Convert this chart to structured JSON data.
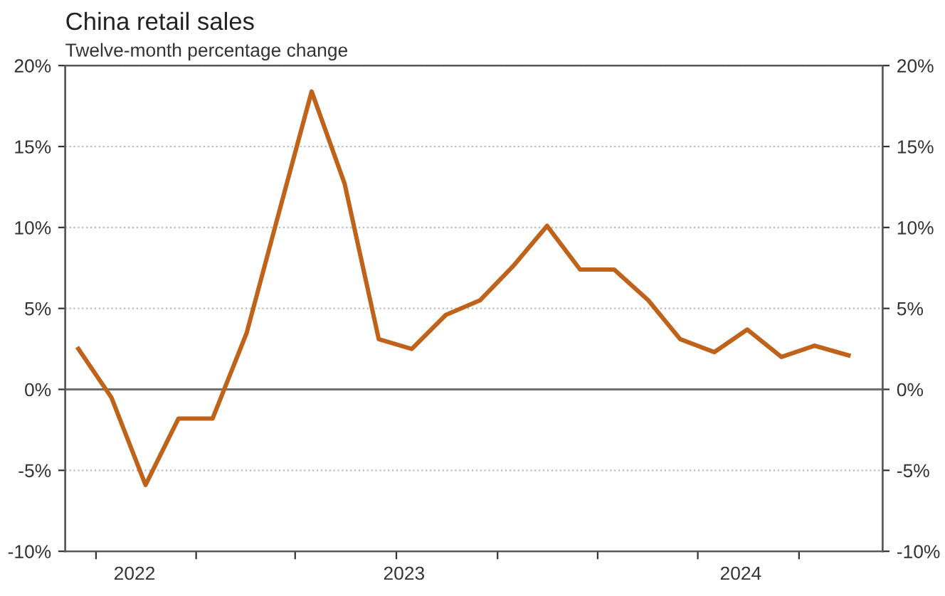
{
  "chart_data": {
    "type": "line",
    "title": "China retail sales",
    "subtitle": "Twelve-month percentage change",
    "x": [
      "2022-09",
      "2022-10",
      "2022-11",
      "2022-12",
      "2023-01",
      "2023-02",
      "2023-03",
      "2023-04",
      "2023-05",
      "2023-06",
      "2023-07",
      "2023-08",
      "2023-09",
      "2023-10",
      "2023-11",
      "2023-12",
      "2024-01",
      "2024-02",
      "2024-03",
      "2024-04",
      "2024-05",
      "2024-06",
      "2024-07",
      "2024-08"
    ],
    "series": [
      {
        "color": "#c0631a",
        "values": [
          2.5,
          -0.5,
          -5.9,
          -1.8,
          -1.8,
          3.5,
          10.6,
          18.4,
          12.7,
          3.1,
          2.5,
          4.6,
          5.5,
          7.6,
          10.1,
          7.4,
          7.4,
          5.5,
          3.1,
          2.3,
          3.7,
          2.0,
          2.7,
          2.1
        ]
      }
    ],
    "xlim": [
      "2022-08-20",
      "2024-09-01"
    ],
    "xticks": [
      {
        "value": "2022-09-17",
        "label": null
      },
      {
        "value": "2022-10-22",
        "label": "2022"
      },
      {
        "value": "2022-12-17",
        "label": null
      },
      {
        "value": "2023-03-17",
        "label": null
      },
      {
        "value": "2023-06-17",
        "label": null
      },
      {
        "value": "2023-06-24",
        "label": "2023"
      },
      {
        "value": "2023-09-17",
        "label": null
      },
      {
        "value": "2023-12-17",
        "label": null
      },
      {
        "value": "2024-03-17",
        "label": null
      },
      {
        "value": "2024-04-25",
        "label": "2024"
      },
      {
        "value": "2024-06-17",
        "label": null
      }
    ],
    "ylim": [
      -10,
      20
    ],
    "yticks": [
      {
        "value": -10,
        "label": "-10%"
      },
      {
        "value": -5,
        "label": "-5%"
      },
      {
        "value": 0,
        "label": "0%"
      },
      {
        "value": 5,
        "label": "5%"
      },
      {
        "value": 10,
        "label": "10%"
      },
      {
        "value": 15,
        "label": "15%"
      },
      {
        "value": 20,
        "label": "20%"
      }
    ],
    "y2lim": [
      -10,
      20
    ],
    "y2ticks": [
      {
        "value": -10,
        "label": "-10%"
      },
      {
        "value": -5,
        "label": "-5%"
      },
      {
        "value": 0,
        "label": "0%"
      },
      {
        "value": 5,
        "label": "5%"
      },
      {
        "value": 10,
        "label": "10%"
      },
      {
        "value": 15,
        "label": "15%"
      },
      {
        "value": 20,
        "label": "20%"
      }
    ],
    "ref_lines": [
      {
        "axis": "y",
        "value": 0,
        "color": "#707070",
        "line_style": "solid"
      }
    ],
    "grid": "y",
    "line_style": "solid",
    "marker": "none"
  }
}
